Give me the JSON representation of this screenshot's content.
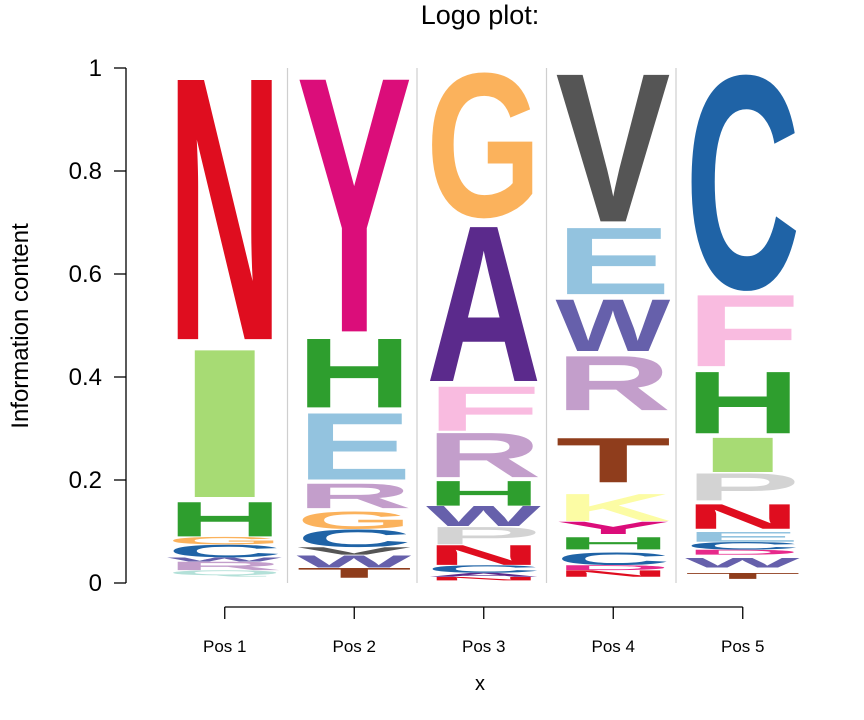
{
  "chart_data": {
    "type": "logo",
    "title": "Logo plot:",
    "xlabel": "x",
    "ylabel": "Information content",
    "ylim": [
      0,
      1
    ],
    "yticks": [
      "0",
      "0.2",
      "0.4",
      "0.6",
      "0.8",
      "1"
    ],
    "ytick_values": [
      0,
      0.2,
      0.4,
      0.6,
      0.8,
      1
    ],
    "grid": false,
    "categories": [
      "Pos 1",
      "Pos 2",
      "Pos 3",
      "Pos 4",
      "Pos 5"
    ],
    "colors": {
      "A": "#5b2a8c",
      "C": "#1f63a6",
      "D": "#e7298a",
      "E": "#93c3df",
      "F": "#f9bbe0",
      "G": "#fbb25c",
      "H": "#2e9e2e",
      "I": "#a7db74",
      "K": "#fcfca4",
      "L": "#cccccc",
      "M": "#aaaaaa",
      "N": "#df0d1f",
      "P": "#d3d3d3",
      "Q": "#b3e0d8",
      "R": "#c39ecb",
      "S": "#fdd29c",
      "T": "#8f3d1c",
      "V": "#555555",
      "W": "#6660ab",
      "Y": "#db0d7a"
    },
    "positions": [
      {
        "letters": [
          {
            "letter": "N",
            "bottom": 0.47,
            "top": 1.0
          },
          {
            "letter": "I",
            "bottom": 0.165,
            "top": 0.465
          },
          {
            "letter": "H",
            "bottom": 0.09,
            "top": 0.16
          },
          {
            "letter": "G",
            "bottom": 0.075,
            "top": 0.09
          },
          {
            "letter": "C",
            "bottom": 0.05,
            "top": 0.075
          },
          {
            "letter": "W",
            "bottom": 0.042,
            "top": 0.05
          },
          {
            "letter": "R",
            "bottom": 0.025,
            "top": 0.042
          },
          {
            "letter": "Q",
            "bottom": 0.015,
            "top": 0.025
          }
        ]
      },
      {
        "letters": [
          {
            "letter": "Y",
            "bottom": 0.485,
            "top": 1.0
          },
          {
            "letter": "H",
            "bottom": 0.34,
            "top": 0.48
          },
          {
            "letter": "E",
            "bottom": 0.2,
            "top": 0.335
          },
          {
            "letter": "R",
            "bottom": 0.145,
            "top": 0.195
          },
          {
            "letter": "G",
            "bottom": 0.105,
            "top": 0.14
          },
          {
            "letter": "C",
            "bottom": 0.07,
            "top": 0.105
          },
          {
            "letter": "V",
            "bottom": 0.055,
            "top": 0.07
          },
          {
            "letter": "W",
            "bottom": 0.03,
            "top": 0.055
          },
          {
            "letter": "T",
            "bottom": 0.01,
            "top": 0.03
          }
        ]
      },
      {
        "letters": [
          {
            "letter": "G",
            "bottom": 0.71,
            "top": 1.0
          },
          {
            "letter": "A",
            "bottom": 0.39,
            "top": 0.705
          },
          {
            "letter": "F",
            "bottom": 0.295,
            "top": 0.385
          },
          {
            "letter": "R",
            "bottom": 0.205,
            "top": 0.295
          },
          {
            "letter": "H",
            "bottom": 0.15,
            "top": 0.2
          },
          {
            "letter": "W",
            "bottom": 0.11,
            "top": 0.15
          },
          {
            "letter": "P",
            "bottom": 0.075,
            "top": 0.11
          },
          {
            "letter": "N",
            "bottom": 0.035,
            "top": 0.075
          },
          {
            "letter": "C",
            "bottom": 0.02,
            "top": 0.035
          },
          {
            "letter": "A",
            "bottom": 0.012,
            "top": 0.02
          },
          {
            "letter": "N",
            "bottom": 0.005,
            "top": 0.012
          }
        ]
      },
      {
        "letters": [
          {
            "letter": "V",
            "bottom": 0.7,
            "top": 1.0
          },
          {
            "letter": "E",
            "bottom": 0.56,
            "top": 0.695
          },
          {
            "letter": "W",
            "bottom": 0.45,
            "top": 0.555
          },
          {
            "letter": "R",
            "bottom": 0.335,
            "top": 0.445
          },
          {
            "letter": "T",
            "bottom": 0.195,
            "top": 0.285
          },
          {
            "letter": "K",
            "bottom": 0.12,
            "top": 0.175
          },
          {
            "letter": "Y",
            "bottom": 0.095,
            "top": 0.12
          },
          {
            "letter": "H",
            "bottom": 0.065,
            "top": 0.09
          },
          {
            "letter": "C",
            "bottom": 0.035,
            "top": 0.06
          },
          {
            "letter": "D",
            "bottom": 0.025,
            "top": 0.035
          },
          {
            "letter": "N",
            "bottom": 0.012,
            "top": 0.025
          }
        ]
      },
      {
        "letters": [
          {
            "letter": "C",
            "bottom": 0.57,
            "top": 1.0
          },
          {
            "letter": "F",
            "bottom": 0.42,
            "top": 0.565
          },
          {
            "letter": "H",
            "bottom": 0.29,
            "top": 0.415
          },
          {
            "letter": "I",
            "bottom": 0.215,
            "top": 0.285
          },
          {
            "letter": "P",
            "bottom": 0.16,
            "top": 0.215
          },
          {
            "letter": "N",
            "bottom": 0.105,
            "top": 0.155
          },
          {
            "letter": "E",
            "bottom": 0.08,
            "top": 0.1
          },
          {
            "letter": "C",
            "bottom": 0.065,
            "top": 0.08
          },
          {
            "letter": "D",
            "bottom": 0.055,
            "top": 0.065
          },
          {
            "letter": "W",
            "bottom": 0.03,
            "top": 0.05
          },
          {
            "letter": "T",
            "bottom": 0.008,
            "top": 0.02
          }
        ]
      }
    ]
  }
}
